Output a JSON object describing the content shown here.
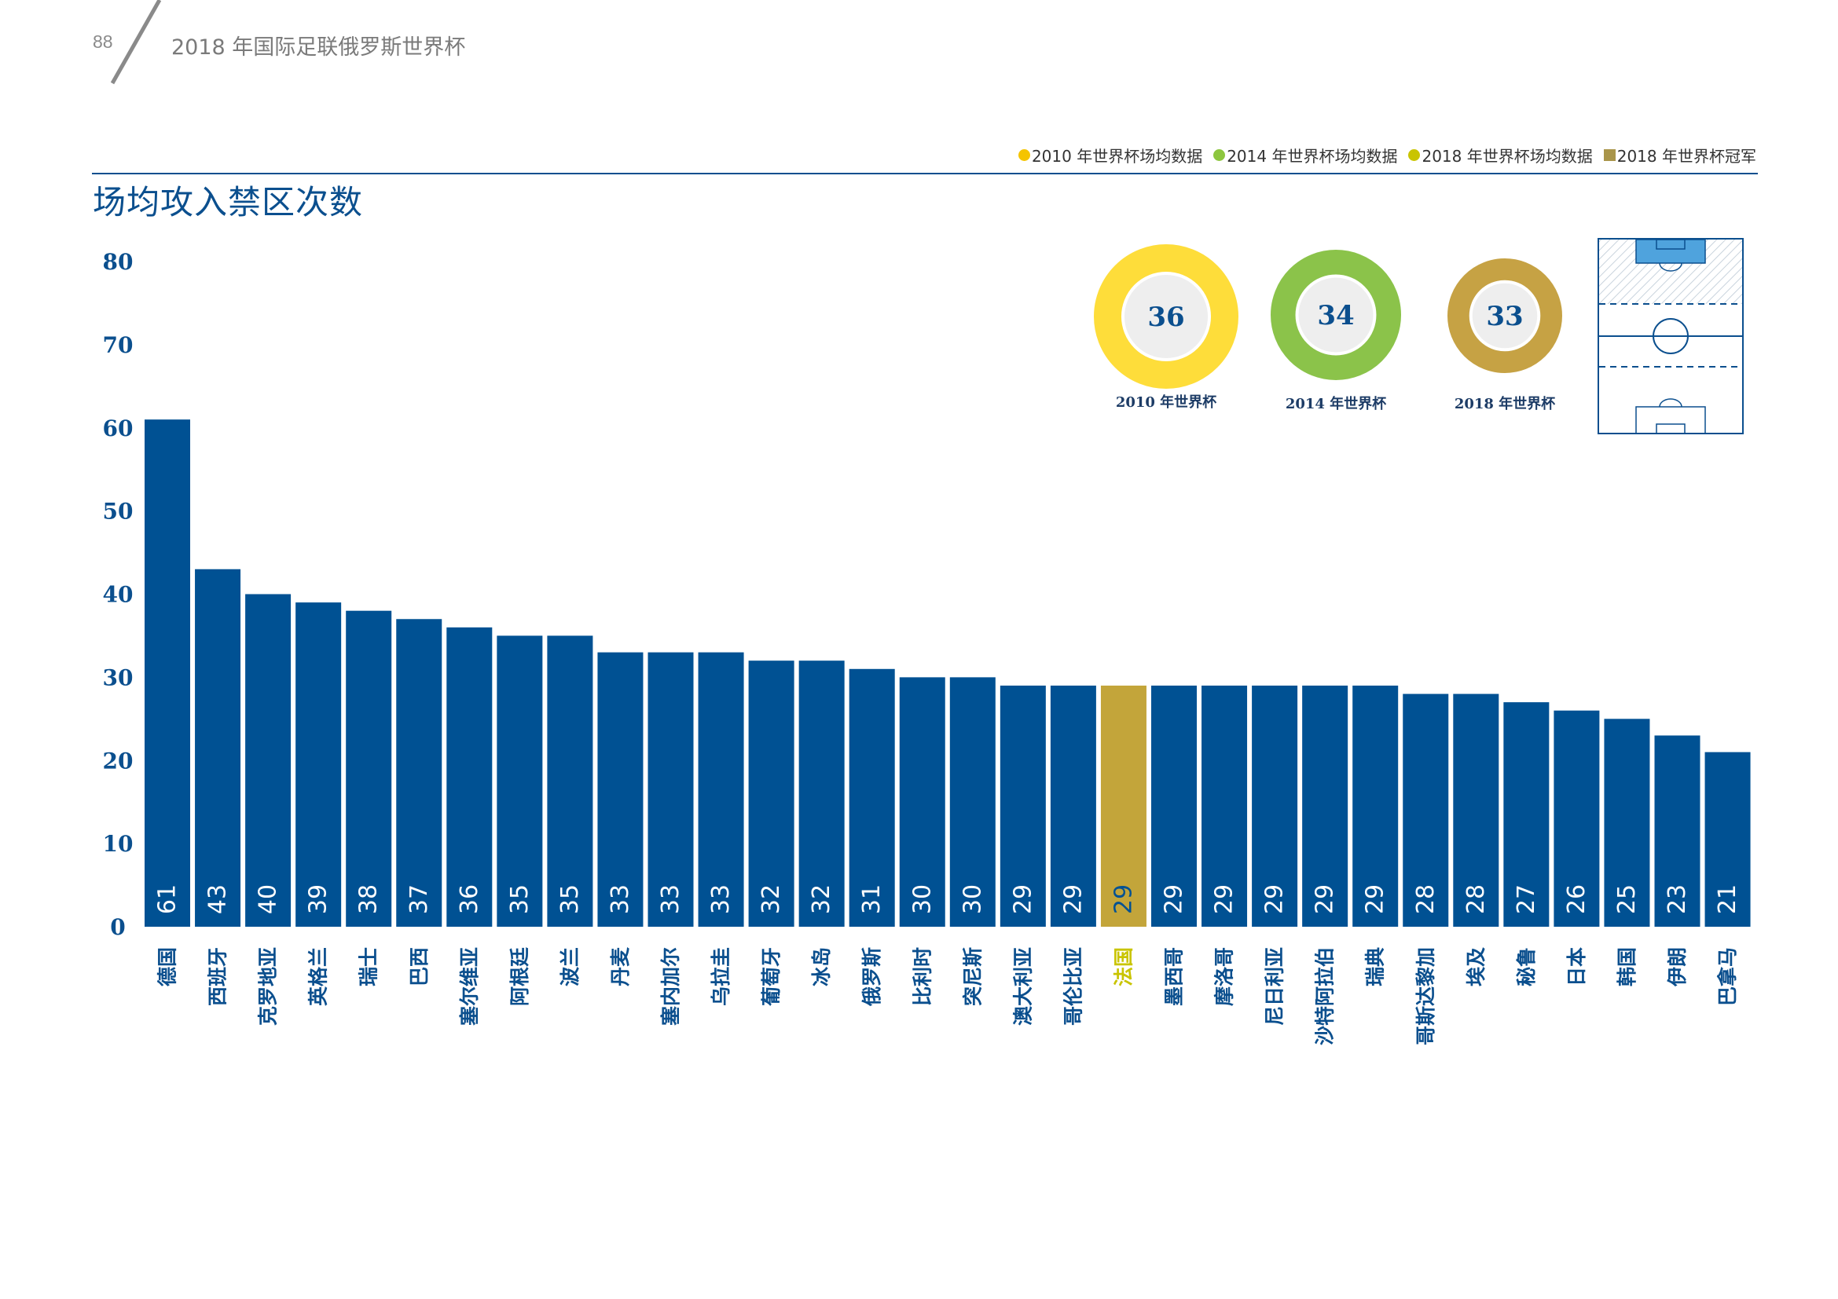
{
  "header": {
    "page_number": "88",
    "title": "2018 年国际足联俄罗斯世界杯"
  },
  "legend": [
    {
      "label": "2010 年世界杯场均数据",
      "color": "#f5c400",
      "shape": "dot"
    },
    {
      "label": "2014 年世界杯场均数据",
      "color": "#8dc63f",
      "shape": "dot"
    },
    {
      "label": "2018 年世界杯场均数据",
      "color": "#c9c400",
      "shape": "dot"
    },
    {
      "label": "2018 年世界杯冠军",
      "color": "#a9954a",
      "shape": "square"
    }
  ],
  "colors": {
    "bar": "#005193",
    "champion_bar": "#c3a53a",
    "axis_text": "#0b4f8e",
    "champion_label": "#c9c400",
    "donut_2010": "#fedd3a",
    "donut_2014": "#8bc34a",
    "donut_2018": "#c6a244"
  },
  "donuts": [
    {
      "value": "36",
      "label": "2010 年世界杯",
      "color_key": "donut_2010"
    },
    {
      "value": "34",
      "label": "2014 年世界杯",
      "color_key": "donut_2014"
    },
    {
      "value": "33",
      "label": "2018 年世界杯",
      "color_key": "donut_2018"
    }
  ],
  "chart_data": {
    "type": "bar",
    "title": "场均攻入禁区次数",
    "xlabel": "",
    "ylabel": "",
    "ylim": [
      0,
      80
    ],
    "yticks": [
      0,
      10,
      20,
      30,
      40,
      50,
      60,
      70,
      80
    ],
    "categories": [
      "德国",
      "西班牙",
      "克罗地亚",
      "英格兰",
      "瑞士",
      "巴西",
      "塞尔维亚",
      "阿根廷",
      "波兰",
      "丹麦",
      "塞内加尔",
      "乌拉圭",
      "葡萄牙",
      "冰岛",
      "俄罗斯",
      "比利时",
      "突尼斯",
      "澳大利亚",
      "哥伦比亚",
      "法国",
      "墨西哥",
      "摩洛哥",
      "尼日利亚",
      "沙特阿拉伯",
      "瑞典",
      "哥斯达黎加",
      "埃及",
      "秘鲁",
      "日本",
      "韩国",
      "伊朗",
      "巴拿马"
    ],
    "values": [
      61,
      43,
      40,
      39,
      38,
      37,
      36,
      35,
      35,
      33,
      33,
      33,
      32,
      32,
      31,
      30,
      30,
      29,
      29,
      29,
      29,
      29,
      29,
      29,
      29,
      28,
      28,
      27,
      26,
      25,
      23,
      21
    ],
    "highlight": "法国"
  }
}
